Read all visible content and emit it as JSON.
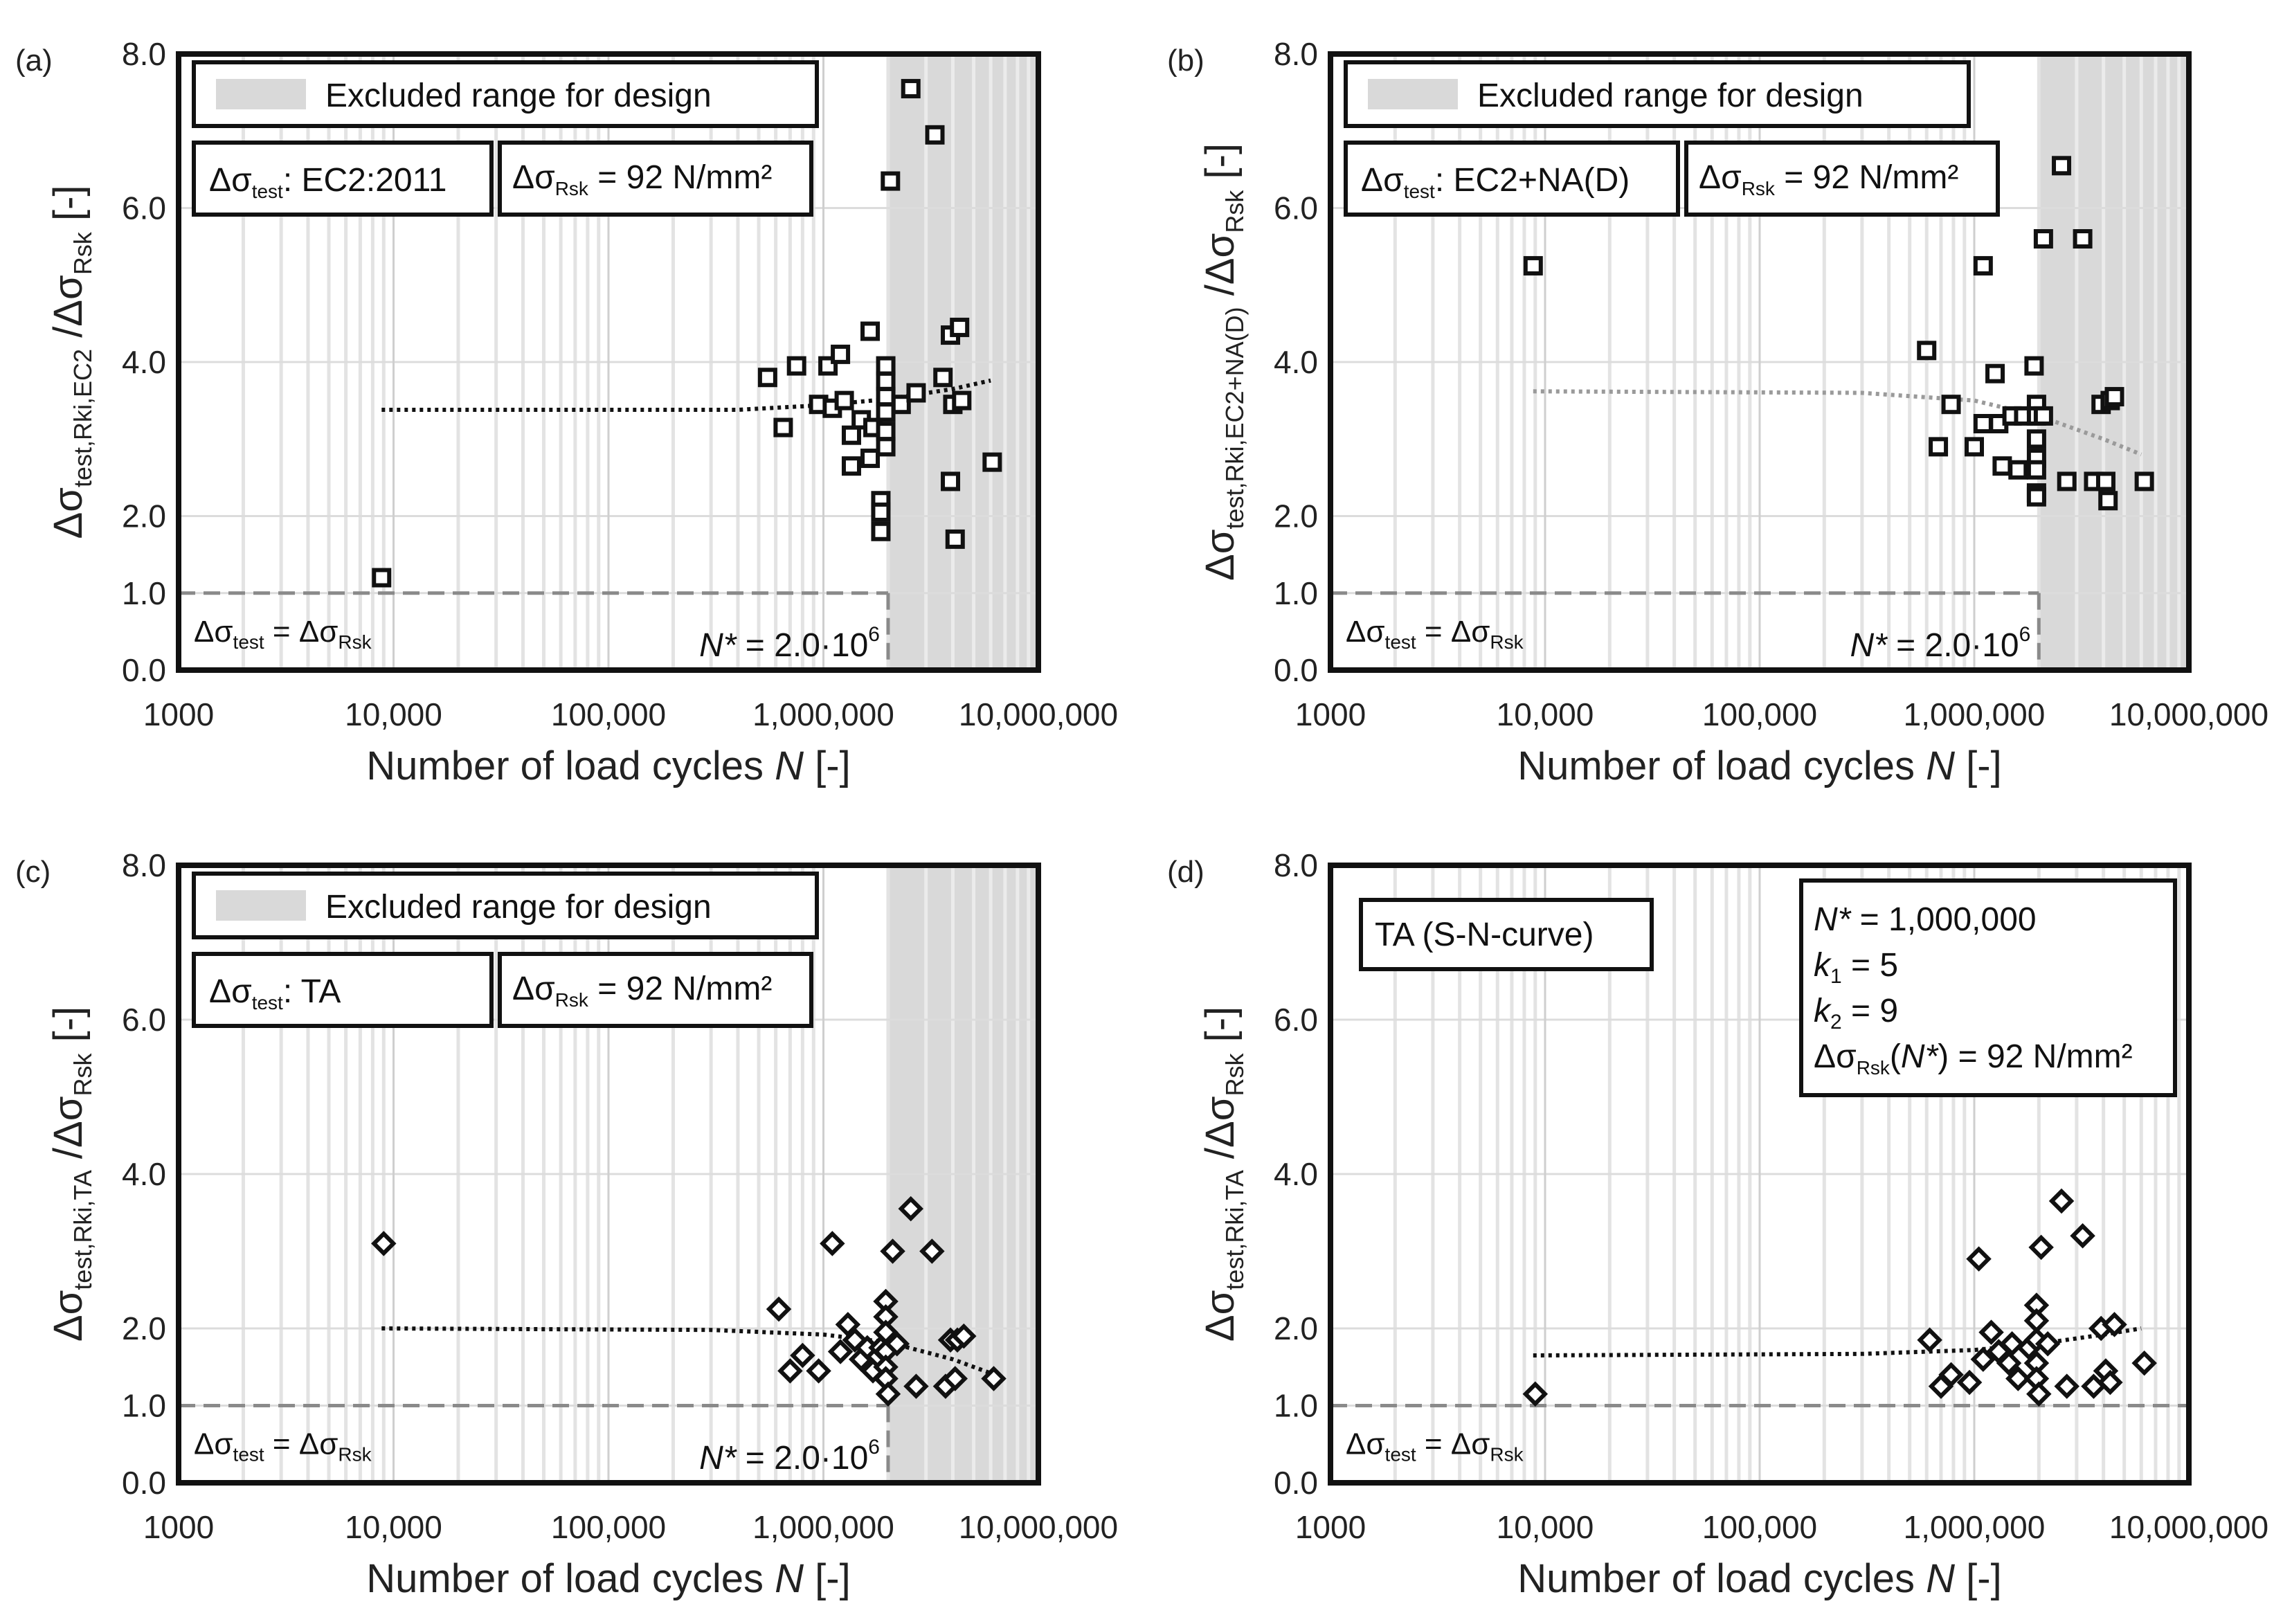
{
  "chart_data": [
    {
      "type": "scatter",
      "panel_label": "(a)",
      "marker": "square",
      "xscale": "log",
      "xlim": [
        1000,
        10000000
      ],
      "ylim": [
        0,
        8
      ],
      "xticks": [
        1000,
        10000,
        100000,
        1000000,
        10000000
      ],
      "xtick_labels": [
        "1000",
        "10,000",
        "100,000",
        "1,000,000",
        "10,000,000"
      ],
      "yticks": [
        0,
        1,
        2,
        4,
        6,
        8
      ],
      "ytick_labels": [
        "0.0",
        "1.0",
        "2.0",
        "4.0",
        "6.0",
        "8.0"
      ],
      "xlabel": "Number of load cycles N [-]",
      "xlabel_parts": {
        "pre": "Number of load cycles ",
        "var": "N",
        "post": " [-]"
      },
      "ylabel": {
        "main": "Δσ",
        "sub1": "test,Rki,EC2",
        "mid": " /Δσ",
        "sub2": "Rsk",
        "post": " [-]"
      },
      "excluded_from": 2000000,
      "legend_excluded": "Excluded range for design",
      "info_boxes": [
        {
          "main": "Δσ",
          "sub": "test",
          "post": ": EC2:2011"
        },
        {
          "main": "Δσ",
          "sub": "Rsk",
          "post": " = 92 N/mm²"
        }
      ],
      "ref_line": {
        "y": 1.0,
        "label_main": "Δσ",
        "label_sub1": "test",
        "label_mid": " = Δσ",
        "label_sub2": "Rsk"
      },
      "nstar_label": {
        "pre": "N*",
        "mid": " = 2.0·10",
        "sup": "6"
      },
      "trend": {
        "x": [
          8800,
          400000,
          1000000,
          2000000,
          4000000,
          6000000
        ],
        "y": [
          3.38,
          3.38,
          3.44,
          3.52,
          3.65,
          3.76
        ],
        "color": "#111111"
      },
      "points": [
        {
          "x": 8800,
          "y": 1.2
        },
        {
          "x": 550000,
          "y": 3.8
        },
        {
          "x": 650000,
          "y": 3.15
        },
        {
          "x": 750000,
          "y": 3.95
        },
        {
          "x": 950000,
          "y": 3.45
        },
        {
          "x": 1050000,
          "y": 3.95
        },
        {
          "x": 1100000,
          "y": 3.4
        },
        {
          "x": 1200000,
          "y": 4.1
        },
        {
          "x": 1250000,
          "y": 3.5
        },
        {
          "x": 1350000,
          "y": 3.05
        },
        {
          "x": 1350000,
          "y": 2.65
        },
        {
          "x": 1500000,
          "y": 3.25
        },
        {
          "x": 1650000,
          "y": 2.75
        },
        {
          "x": 1650000,
          "y": 4.4
        },
        {
          "x": 1700000,
          "y": 3.15
        },
        {
          "x": 1850000,
          "y": 2.2
        },
        {
          "x": 1850000,
          "y": 2.05
        },
        {
          "x": 1850000,
          "y": 1.8
        },
        {
          "x": 1950000,
          "y": 3.95
        },
        {
          "x": 1950000,
          "y": 3.75
        },
        {
          "x": 1950000,
          "y": 3.55
        },
        {
          "x": 1950000,
          "y": 3.35
        },
        {
          "x": 1950000,
          "y": 3.1
        },
        {
          "x": 1950000,
          "y": 2.9
        },
        {
          "x": 2050000,
          "y": 6.35
        },
        {
          "x": 2300000,
          "y": 3.45
        },
        {
          "x": 2550000,
          "y": 7.55
        },
        {
          "x": 2700000,
          "y": 3.6
        },
        {
          "x": 3300000,
          "y": 6.95
        },
        {
          "x": 3600000,
          "y": 3.8
        },
        {
          "x": 3900000,
          "y": 4.35
        },
        {
          "x": 3900000,
          "y": 2.45
        },
        {
          "x": 4000000,
          "y": 3.45
        },
        {
          "x": 4100000,
          "y": 1.7
        },
        {
          "x": 4300000,
          "y": 4.45
        },
        {
          "x": 4400000,
          "y": 3.5
        },
        {
          "x": 6100000,
          "y": 2.7
        }
      ]
    },
    {
      "type": "scatter",
      "panel_label": "(b)",
      "marker": "square",
      "xscale": "log",
      "xlim": [
        1000,
        10000000
      ],
      "ylim": [
        0,
        8
      ],
      "xticks": [
        1000,
        10000,
        100000,
        1000000,
        10000000
      ],
      "xtick_labels": [
        "1000",
        "10,000",
        "100,000",
        "1,000,000",
        "10,000,000"
      ],
      "yticks": [
        0,
        1,
        2,
        4,
        6,
        8
      ],
      "ytick_labels": [
        "0.0",
        "1.0",
        "2.0",
        "4.0",
        "6.0",
        "8.0"
      ],
      "xlabel": "Number of load cycles N [-]",
      "xlabel_parts": {
        "pre": "Number of load cycles ",
        "var": "N",
        "post": " [-]"
      },
      "ylabel": {
        "main": "Δσ",
        "sub1": "test,Rki,EC2+NA(D)",
        "mid": " /Δσ",
        "sub2": "Rsk",
        "post": " [-]"
      },
      "excluded_from": 2000000,
      "legend_excluded": "Excluded range for design",
      "info_boxes": [
        {
          "main": "Δσ",
          "sub": "test",
          "post": ": EC2+NA(D)"
        },
        {
          "main": "Δσ",
          "sub": "Rsk",
          "post": " = 92 N/mm²"
        }
      ],
      "ref_line": {
        "y": 1.0,
        "label_main": "Δσ",
        "label_sub1": "test",
        "label_mid": " = Δσ",
        "label_sub2": "Rsk"
      },
      "nstar_label": {
        "pre": "N*",
        "mid": " = 2.0·10",
        "sup": "6"
      },
      "trend": {
        "x": [
          8800,
          300000,
          1000000,
          2000000,
          4000000,
          6000000
        ],
        "y": [
          3.62,
          3.6,
          3.5,
          3.3,
          3.0,
          2.8
        ],
        "color": "#9a9a9a"
      },
      "points": [
        {
          "x": 8800,
          "y": 5.25
        },
        {
          "x": 600000,
          "y": 4.15
        },
        {
          "x": 680000,
          "y": 2.9
        },
        {
          "x": 780000,
          "y": 3.45
        },
        {
          "x": 1000000,
          "y": 2.9
        },
        {
          "x": 1100000,
          "y": 5.25
        },
        {
          "x": 1100000,
          "y": 3.2
        },
        {
          "x": 1250000,
          "y": 3.85
        },
        {
          "x": 1300000,
          "y": 3.2
        },
        {
          "x": 1350000,
          "y": 2.65
        },
        {
          "x": 1500000,
          "y": 3.3
        },
        {
          "x": 1600000,
          "y": 2.6
        },
        {
          "x": 1700000,
          "y": 3.3
        },
        {
          "x": 1900000,
          "y": 3.95
        },
        {
          "x": 1950000,
          "y": 3.45
        },
        {
          "x": 1950000,
          "y": 3.3
        },
        {
          "x": 1950000,
          "y": 3.0
        },
        {
          "x": 1950000,
          "y": 2.75
        },
        {
          "x": 1950000,
          "y": 2.6
        },
        {
          "x": 1950000,
          "y": 2.3
        },
        {
          "x": 1950000,
          "y": 2.25
        },
        {
          "x": 2100000,
          "y": 5.6
        },
        {
          "x": 2100000,
          "y": 3.3
        },
        {
          "x": 2550000,
          "y": 6.55
        },
        {
          "x": 2700000,
          "y": 2.45
        },
        {
          "x": 3200000,
          "y": 5.6
        },
        {
          "x": 3600000,
          "y": 2.45
        },
        {
          "x": 3900000,
          "y": 3.45
        },
        {
          "x": 4100000,
          "y": 2.45
        },
        {
          "x": 4200000,
          "y": 2.2
        },
        {
          "x": 4300000,
          "y": 3.5
        },
        {
          "x": 4500000,
          "y": 3.55
        },
        {
          "x": 6200000,
          "y": 2.45
        }
      ]
    },
    {
      "type": "scatter",
      "panel_label": "(c)",
      "marker": "diamond",
      "xscale": "log",
      "xlim": [
        1000,
        10000000
      ],
      "ylim": [
        0,
        8
      ],
      "xticks": [
        1000,
        10000,
        100000,
        1000000,
        10000000
      ],
      "xtick_labels": [
        "1000",
        "10,000",
        "100,000",
        "1,000,000",
        "10,000,000"
      ],
      "yticks": [
        0,
        1,
        2,
        4,
        6,
        8
      ],
      "ytick_labels": [
        "0.0",
        "1.0",
        "2.0",
        "4.0",
        "6.0",
        "8.0"
      ],
      "xlabel": "Number of load cycles N [-]",
      "xlabel_parts": {
        "pre": "Number of load cycles ",
        "var": "N",
        "post": " [-]"
      },
      "ylabel": {
        "main": "Δσ",
        "sub1": "test,Rki,TA",
        "mid": " /Δσ",
        "sub2": "Rsk",
        "post": " [-]"
      },
      "excluded_from": 2000000,
      "legend_excluded": "Excluded range for design",
      "info_boxes": [
        {
          "main": "Δσ",
          "sub": "test",
          "post": ": TA"
        },
        {
          "main": "Δσ",
          "sub": "Rsk",
          "post": " = 92 N/mm²"
        }
      ],
      "ref_line": {
        "y": 1.0,
        "label_main": "Δσ",
        "label_sub1": "test",
        "label_mid": " = Δσ",
        "label_sub2": "Rsk"
      },
      "nstar_label": {
        "pre": "N*",
        "mid": " = 2.0·10",
        "sup": "6"
      },
      "trend": {
        "x": [
          8800,
          300000,
          1000000,
          2000000,
          4000000,
          6000000
        ],
        "y": [
          2.0,
          1.98,
          1.92,
          1.82,
          1.6,
          1.42
        ],
        "color": "#111111"
      },
      "points": [
        {
          "x": 9000,
          "y": 3.1
        },
        {
          "x": 620000,
          "y": 2.25
        },
        {
          "x": 700000,
          "y": 1.45
        },
        {
          "x": 800000,
          "y": 1.65
        },
        {
          "x": 950000,
          "y": 1.45
        },
        {
          "x": 1100000,
          "y": 3.1
        },
        {
          "x": 1200000,
          "y": 1.7
        },
        {
          "x": 1300000,
          "y": 2.05
        },
        {
          "x": 1400000,
          "y": 1.85
        },
        {
          "x": 1500000,
          "y": 1.6
        },
        {
          "x": 1600000,
          "y": 1.75
        },
        {
          "x": 1700000,
          "y": 1.45
        },
        {
          "x": 1850000,
          "y": 1.75
        },
        {
          "x": 1950000,
          "y": 2.35
        },
        {
          "x": 1950000,
          "y": 2.15
        },
        {
          "x": 1950000,
          "y": 1.95
        },
        {
          "x": 1950000,
          "y": 1.7
        },
        {
          "x": 1950000,
          "y": 1.5
        },
        {
          "x": 1950000,
          "y": 1.35
        },
        {
          "x": 2000000,
          "y": 1.15
        },
        {
          "x": 2100000,
          "y": 3.0
        },
        {
          "x": 2200000,
          "y": 1.8
        },
        {
          "x": 2550000,
          "y": 3.55
        },
        {
          "x": 2700000,
          "y": 1.25
        },
        {
          "x": 3200000,
          "y": 3.0
        },
        {
          "x": 3700000,
          "y": 1.25
        },
        {
          "x": 3900000,
          "y": 1.85
        },
        {
          "x": 4100000,
          "y": 1.35
        },
        {
          "x": 4200000,
          "y": 1.85
        },
        {
          "x": 4500000,
          "y": 1.9
        },
        {
          "x": 6200000,
          "y": 1.35
        }
      ]
    },
    {
      "type": "scatter",
      "panel_label": "(d)",
      "marker": "diamond",
      "xscale": "log",
      "xlim": [
        1000,
        10000000
      ],
      "ylim": [
        0,
        8
      ],
      "xticks": [
        1000,
        10000,
        100000,
        1000000,
        10000000
      ],
      "xtick_labels": [
        "1000",
        "10,000",
        "100,000",
        "1,000,000",
        "10,000,000"
      ],
      "yticks": [
        0,
        1,
        2,
        4,
        6,
        8
      ],
      "ytick_labels": [
        "0.0",
        "1.0",
        "2.0",
        "4.0",
        "6.0",
        "8.0"
      ],
      "xlabel": "Number of load cycles N [-]",
      "xlabel_parts": {
        "pre": "Number of load cycles ",
        "var": "N",
        "post": " [-]"
      },
      "ylabel": {
        "main": "Δσ",
        "sub1": "test,Rki,TA",
        "mid": " /Δσ",
        "sub2": "Rsk",
        "post": " [-]"
      },
      "excluded_from": null,
      "legend_title": "TA (S-N-curve)",
      "params": [
        {
          "pre": "N*",
          "mid": " = 1,000,000"
        },
        {
          "pre": "k",
          "sub": "1",
          "mid": " = 5"
        },
        {
          "pre": "k",
          "sub": "2",
          "mid": " = 9"
        },
        {
          "main": "Δσ",
          "sub": "Rsk",
          "mid2": "(",
          "var": "N*",
          "post": ") = 92 N/mm²"
        }
      ],
      "ref_line": {
        "y": 1.0,
        "label_main": "Δσ",
        "label_sub1": "test",
        "label_mid": " = Δσ",
        "label_sub2": "Rsk"
      },
      "trend": {
        "x": [
          8800,
          300000,
          1000000,
          2000000,
          4000000,
          6000000
        ],
        "y": [
          1.65,
          1.67,
          1.72,
          1.8,
          1.92,
          2.0
        ],
        "color": "#111111"
      },
      "points": [
        {
          "x": 9000,
          "y": 1.15
        },
        {
          "x": 620000,
          "y": 1.85
        },
        {
          "x": 700000,
          "y": 1.25
        },
        {
          "x": 780000,
          "y": 1.4
        },
        {
          "x": 950000,
          "y": 1.3
        },
        {
          "x": 1050000,
          "y": 2.9
        },
        {
          "x": 1100000,
          "y": 1.6
        },
        {
          "x": 1200000,
          "y": 1.95
        },
        {
          "x": 1300000,
          "y": 1.7
        },
        {
          "x": 1450000,
          "y": 1.55
        },
        {
          "x": 1500000,
          "y": 1.8
        },
        {
          "x": 1600000,
          "y": 1.35
        },
        {
          "x": 1800000,
          "y": 1.75
        },
        {
          "x": 1950000,
          "y": 2.3
        },
        {
          "x": 1950000,
          "y": 2.1
        },
        {
          "x": 1950000,
          "y": 1.85
        },
        {
          "x": 1950000,
          "y": 1.55
        },
        {
          "x": 1950000,
          "y": 1.35
        },
        {
          "x": 2000000,
          "y": 1.15
        },
        {
          "x": 2050000,
          "y": 3.05
        },
        {
          "x": 2200000,
          "y": 1.8
        },
        {
          "x": 2550000,
          "y": 3.65
        },
        {
          "x": 2700000,
          "y": 1.25
        },
        {
          "x": 3200000,
          "y": 3.2
        },
        {
          "x": 3600000,
          "y": 1.25
        },
        {
          "x": 3900000,
          "y": 2.0
        },
        {
          "x": 4100000,
          "y": 1.45
        },
        {
          "x": 4300000,
          "y": 1.3
        },
        {
          "x": 4500000,
          "y": 2.05
        },
        {
          "x": 6200000,
          "y": 1.55
        }
      ]
    }
  ]
}
